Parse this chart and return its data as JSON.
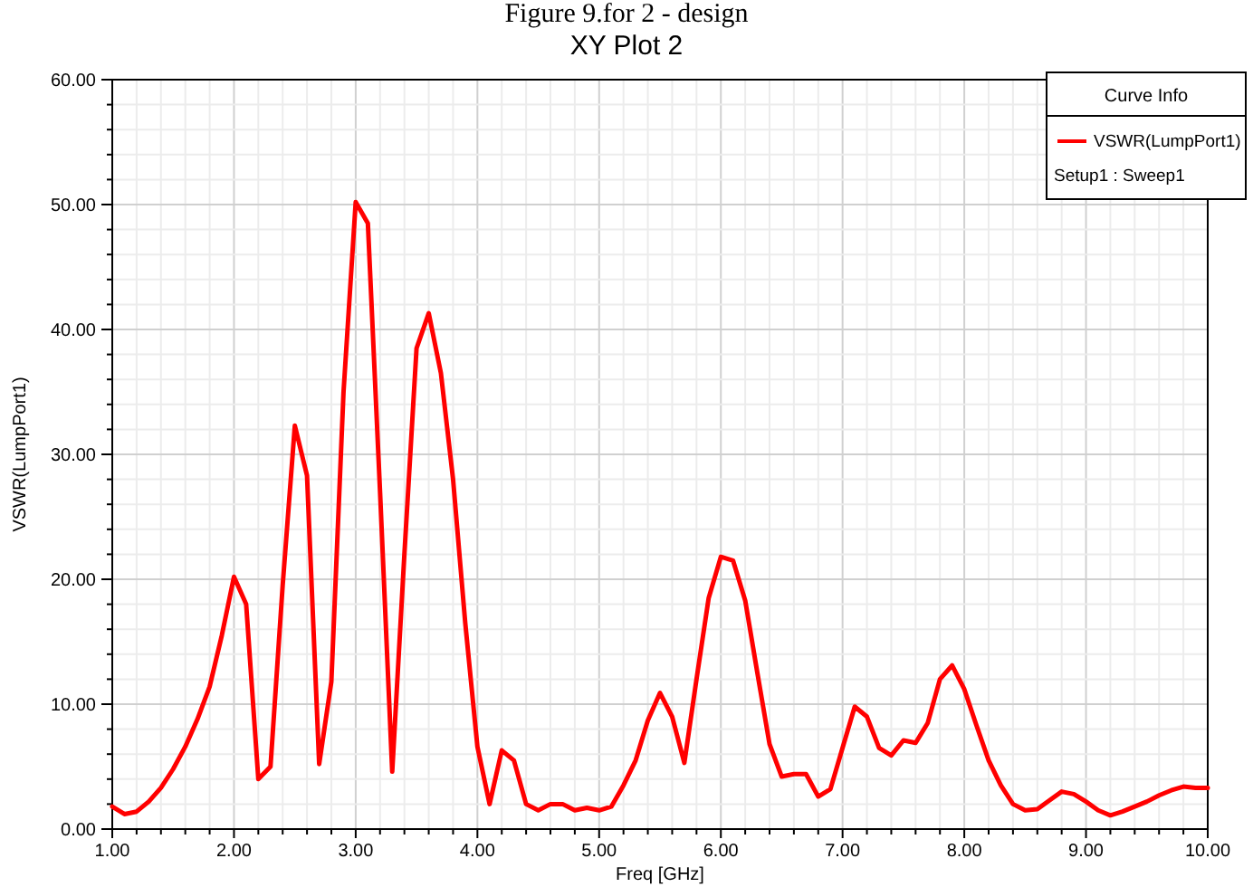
{
  "chart_data": {
    "type": "line",
    "title": "XY Plot 2",
    "xlabel": "Freq [GHz]",
    "ylabel": "VSWR(LumpPort1)",
    "legend_title": "Curve Info",
    "annotations": [
      "Figure 9.for 2 - design",
      "Setup1 : Sweep1"
    ],
    "x": [
      1.0,
      1.1,
      1.2,
      1.3,
      1.4,
      1.5,
      1.6,
      1.7,
      1.8,
      1.9,
      2.0,
      2.1,
      2.2,
      2.3,
      2.4,
      2.5,
      2.6,
      2.7,
      2.8,
      2.9,
      3.0,
      3.1,
      3.2,
      3.3,
      3.4,
      3.5,
      3.6,
      3.7,
      3.8,
      3.9,
      4.0,
      4.1,
      4.2,
      4.3,
      4.4,
      4.5,
      4.6,
      4.7,
      4.8,
      4.9,
      5.0,
      5.1,
      5.2,
      5.3,
      5.4,
      5.5,
      5.6,
      5.7,
      5.8,
      5.9,
      6.0,
      6.1,
      6.2,
      6.3,
      6.4,
      6.5,
      6.6,
      6.7,
      6.8,
      6.9,
      7.0,
      7.1,
      7.2,
      7.3,
      7.4,
      7.5,
      7.6,
      7.7,
      7.8,
      7.9,
      8.0,
      8.1,
      8.2,
      8.3,
      8.4,
      8.5,
      8.6,
      8.7,
      8.8,
      8.9,
      9.0,
      9.1,
      9.2,
      9.3,
      9.4,
      9.5,
      9.6,
      9.7,
      9.8,
      9.9,
      10.0
    ],
    "series": [
      {
        "name": "VSWR(LumpPort1)",
        "color": "#ff0000",
        "values": [
          1.8,
          1.2,
          1.4,
          2.2,
          3.3,
          4.8,
          6.6,
          8.8,
          11.4,
          15.5,
          20.2,
          18.0,
          4.0,
          5.0,
          19.5,
          32.3,
          28.3,
          5.2,
          11.8,
          35.0,
          50.2,
          48.5,
          27,
          4.6,
          22,
          38.5,
          41.3,
          36.5,
          28,
          16.5,
          6.6,
          2.0,
          6.3,
          5.5,
          2.0,
          1.5,
          2.0,
          2.0,
          1.5,
          1.7,
          1.5,
          1.8,
          3.5,
          5.5,
          8.7,
          10.9,
          9.0,
          5.3,
          12,
          18.5,
          21.8,
          21.5,
          18.3,
          12.5,
          6.8,
          4.2,
          4.4,
          4.4,
          2.6,
          3.2,
          6.5,
          9.8,
          9.0,
          6.5,
          5.9,
          7.1,
          6.9,
          8.5,
          12.0,
          13.1,
          11.2,
          8.3,
          5.5,
          3.5,
          2.0,
          1.5,
          1.6,
          2.3,
          3.0,
          2.8,
          2.2,
          1.5,
          1.1,
          1.4,
          1.8,
          2.2,
          2.7,
          3.1,
          3.4,
          3.3,
          3.3
        ]
      }
    ],
    "xlim": [
      1,
      10
    ],
    "xticks": [
      {
        "value": 1,
        "label": "1.00"
      },
      {
        "value": 1.2,
        "label": null
      },
      {
        "value": 1.4,
        "label": null
      },
      {
        "value": 1.6,
        "label": null
      },
      {
        "value": 1.8,
        "label": null
      },
      {
        "value": 2,
        "label": "2.00"
      },
      {
        "value": 2.2,
        "label": null
      },
      {
        "value": 2.4,
        "label": null
      },
      {
        "value": 2.6,
        "label": null
      },
      {
        "value": 2.8,
        "label": null
      },
      {
        "value": 3,
        "label": "3.00"
      },
      {
        "value": 3.2,
        "label": null
      },
      {
        "value": 3.4,
        "label": null
      },
      {
        "value": 3.6,
        "label": null
      },
      {
        "value": 3.8,
        "label": null
      },
      {
        "value": 4,
        "label": "4.00"
      },
      {
        "value": 4.2,
        "label": null
      },
      {
        "value": 4.4,
        "label": null
      },
      {
        "value": 4.6,
        "label": null
      },
      {
        "value": 4.8,
        "label": null
      },
      {
        "value": 5,
        "label": "5.00"
      },
      {
        "value": 5.2,
        "label": null
      },
      {
        "value": 5.4,
        "label": null
      },
      {
        "value": 5.6,
        "label": null
      },
      {
        "value": 5.8,
        "label": null
      },
      {
        "value": 6,
        "label": "6.00"
      },
      {
        "value": 6.2,
        "label": null
      },
      {
        "value": 6.4,
        "label": null
      },
      {
        "value": 6.6,
        "label": null
      },
      {
        "value": 6.8,
        "label": null
      },
      {
        "value": 7,
        "label": "7.00"
      },
      {
        "value": 7.2,
        "label": null
      },
      {
        "value": 7.4,
        "label": null
      },
      {
        "value": 7.6,
        "label": null
      },
      {
        "value": 7.8,
        "label": null
      },
      {
        "value": 8,
        "label": "8.00"
      },
      {
        "value": 8.2,
        "label": null
      },
      {
        "value": 8.4,
        "label": null
      },
      {
        "value": 8.6,
        "label": null
      },
      {
        "value": 8.8,
        "label": null
      },
      {
        "value": 9,
        "label": "9.00"
      },
      {
        "value": 9.2,
        "label": null
      },
      {
        "value": 9.4,
        "label": null
      },
      {
        "value": 9.6,
        "label": null
      },
      {
        "value": 9.8,
        "label": null
      },
      {
        "value": 10,
        "label": "10.00"
      }
    ],
    "ylim": [
      0,
      60
    ],
    "yticks": [
      {
        "value": 0,
        "label": "0.00"
      },
      {
        "value": 2,
        "label": null
      },
      {
        "value": 4,
        "label": null
      },
      {
        "value": 6,
        "label": null
      },
      {
        "value": 8,
        "label": null
      },
      {
        "value": 10,
        "label": "10.00"
      },
      {
        "value": 12,
        "label": null
      },
      {
        "value": 14,
        "label": null
      },
      {
        "value": 16,
        "label": null
      },
      {
        "value": 18,
        "label": null
      },
      {
        "value": 20,
        "label": "20.00"
      },
      {
        "value": 22,
        "label": null
      },
      {
        "value": 24,
        "label": null
      },
      {
        "value": 26,
        "label": null
      },
      {
        "value": 28,
        "label": null
      },
      {
        "value": 30,
        "label": "30.00"
      },
      {
        "value": 32,
        "label": null
      },
      {
        "value": 34,
        "label": null
      },
      {
        "value": 36,
        "label": null
      },
      {
        "value": 38,
        "label": null
      },
      {
        "value": 40,
        "label": "40.00"
      },
      {
        "value": 42,
        "label": null
      },
      {
        "value": 44,
        "label": null
      },
      {
        "value": 46,
        "label": null
      },
      {
        "value": 48,
        "label": null
      },
      {
        "value": 50,
        "label": "50.00"
      },
      {
        "value": 52,
        "label": null
      },
      {
        "value": 54,
        "label": null
      },
      {
        "value": 56,
        "label": null
      },
      {
        "value": 58,
        "label": null
      },
      {
        "value": 60,
        "label": "60.00"
      }
    ],
    "grid": true,
    "legend": "top right",
    "marker": "none",
    "line_style": "solid"
  }
}
